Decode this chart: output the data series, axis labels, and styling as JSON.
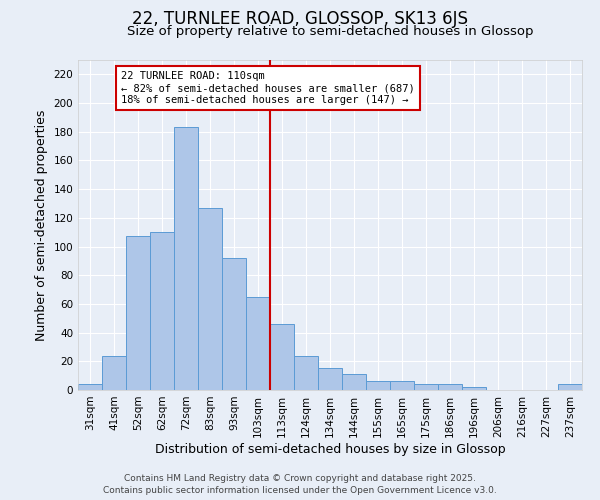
{
  "title": "22, TURNLEE ROAD, GLOSSOP, SK13 6JS",
  "subtitle": "Size of property relative to semi-detached houses in Glossop",
  "xlabel": "Distribution of semi-detached houses by size in Glossop",
  "ylabel": "Number of semi-detached properties",
  "bar_labels": [
    "31sqm",
    "41sqm",
    "52sqm",
    "62sqm",
    "72sqm",
    "83sqm",
    "93sqm",
    "103sqm",
    "113sqm",
    "124sqm",
    "134sqm",
    "144sqm",
    "155sqm",
    "165sqm",
    "175sqm",
    "186sqm",
    "196sqm",
    "206sqm",
    "216sqm",
    "227sqm",
    "237sqm"
  ],
  "bar_values": [
    4,
    24,
    107,
    110,
    183,
    127,
    92,
    65,
    46,
    24,
    15,
    11,
    6,
    6,
    4,
    4,
    2,
    0,
    0,
    0,
    4
  ],
  "bar_color": "#aec6e8",
  "bar_edge_color": "#5b9bd5",
  "vline_color": "#cc0000",
  "vline_index": 8,
  "annotation_title": "22 TURNLEE ROAD: 110sqm",
  "annotation_line1": "← 82% of semi-detached houses are smaller (687)",
  "annotation_line2": "18% of semi-detached houses are larger (147) →",
  "ylim": [
    0,
    230
  ],
  "yticks": [
    0,
    20,
    40,
    60,
    80,
    100,
    120,
    140,
    160,
    180,
    200,
    220
  ],
  "background_color": "#e8eef7",
  "footer1": "Contains HM Land Registry data © Crown copyright and database right 2025.",
  "footer2": "Contains public sector information licensed under the Open Government Licence v3.0.",
  "title_fontsize": 12,
  "subtitle_fontsize": 9.5,
  "axis_label_fontsize": 9,
  "tick_fontsize": 7.5,
  "footer_fontsize": 6.5
}
